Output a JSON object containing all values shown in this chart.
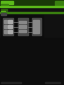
{
  "figsize": [
    0.64,
    0.85
  ],
  "dpi": 100,
  "page_bg": "#111111",
  "top_strip_color": "#1a3a08",
  "green_bright": "#5cba1a",
  "green_dark": "#2d5a0e",
  "green_mid": "#3a8010",
  "header_line_color": "#5cba1a",
  "diagram_bg": "#1a1a1a",
  "box_gray1": "#6a6a6a",
  "box_gray2": "#888888",
  "box_gray3": "#4a4a4a",
  "box_light": "#aaaaaa",
  "box_white": "#c0c0c0",
  "line_gray": "#777777",
  "border_color": "#555555",
  "bottom_bg": "#0d0d0d"
}
